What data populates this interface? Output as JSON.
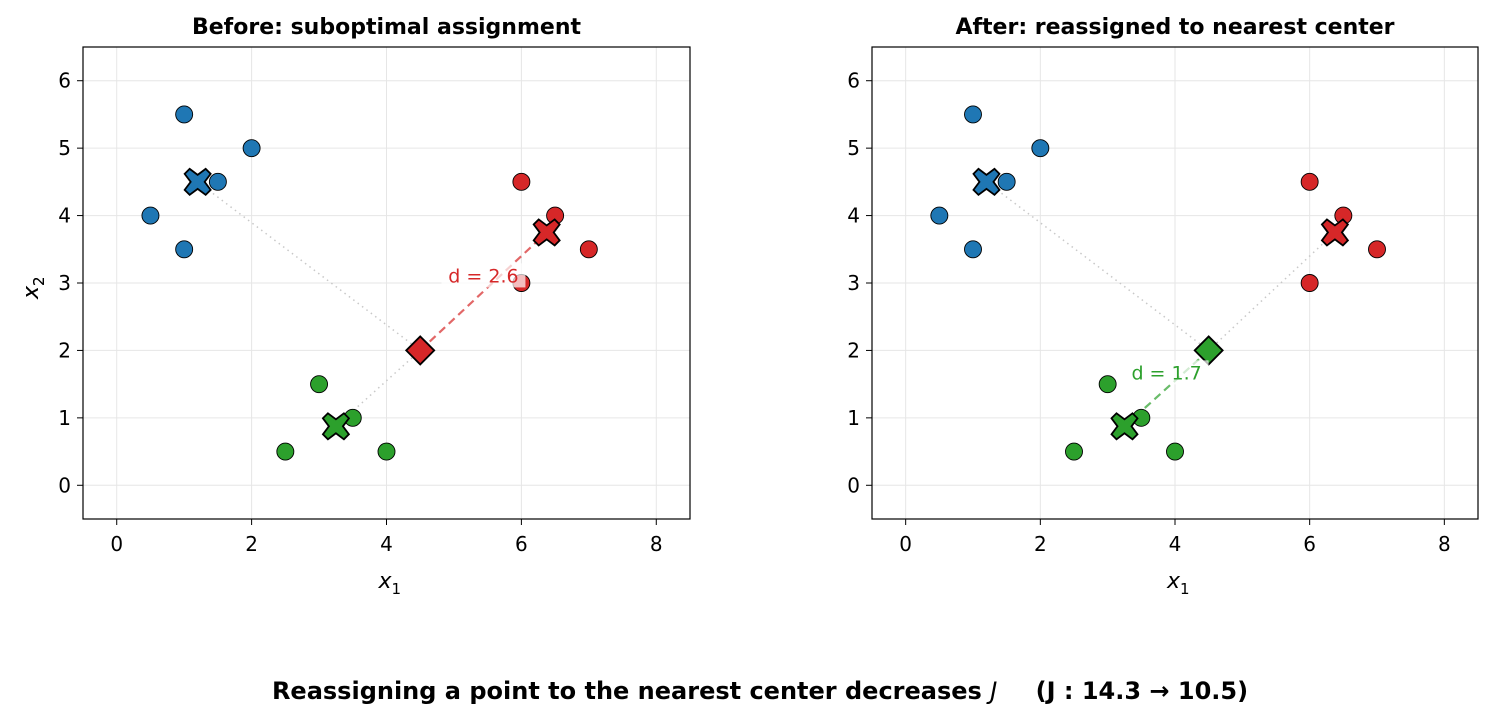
{
  "suptitle": {
    "text": "Reassigning a point to the nearest center decreases",
    "j_symbol": "J",
    "change": "(J : 14.3 → 10.5)"
  },
  "colors": {
    "blue": "#1f77b4",
    "red": "#d62728",
    "green": "#2ca02c",
    "grid": "#e6e6e6",
    "link": "#c8c8c8"
  },
  "chart_data": [
    {
      "type": "scatter",
      "title": "Before: suboptimal assignment",
      "xlabel": "x",
      "xlabel_sub": "1",
      "ylabel": "x",
      "ylabel_sub": "2",
      "xlim": [
        -0.5,
        8.5
      ],
      "ylim": [
        -0.5,
        6.5
      ],
      "xticks": [
        0,
        2,
        4,
        6,
        8
      ],
      "yticks": [
        0,
        1,
        2,
        3,
        4,
        5,
        6
      ],
      "grid": true,
      "series": [
        {
          "color": "blue",
          "points": [
            [
              1,
              5.5
            ],
            [
              2,
              5
            ],
            [
              1.5,
              4.5
            ],
            [
              0.5,
              4
            ],
            [
              1,
              3.5
            ]
          ],
          "center": [
            1.2,
            4.5
          ]
        },
        {
          "color": "red",
          "points": [
            [
              6,
              4.5
            ],
            [
              6.5,
              4
            ],
            [
              7,
              3.5
            ],
            [
              6,
              3
            ]
          ],
          "center": [
            6.375,
            3.75
          ]
        },
        {
          "color": "green",
          "points": [
            [
              3,
              1.5
            ],
            [
              3.5,
              1
            ],
            [
              2.5,
              0.5
            ],
            [
              4,
              0.5
            ]
          ],
          "center": [
            3.25,
            0.875
          ]
        }
      ],
      "highlight_point": {
        "x": 4.5,
        "y": 2,
        "assigned": "red",
        "distance_label": "d = 2.6"
      }
    },
    {
      "type": "scatter",
      "title": "After: reassigned to nearest center",
      "xlabel": "x",
      "xlabel_sub": "1",
      "ylabel": "x",
      "ylabel_sub": "2",
      "xlim": [
        -0.5,
        8.5
      ],
      "ylim": [
        -0.5,
        6.5
      ],
      "xticks": [
        0,
        2,
        4,
        6,
        8
      ],
      "yticks": [
        0,
        1,
        2,
        3,
        4,
        5,
        6
      ],
      "grid": true,
      "series": [
        {
          "color": "blue",
          "points": [
            [
              1,
              5.5
            ],
            [
              2,
              5
            ],
            [
              1.5,
              4.5
            ],
            [
              0.5,
              4
            ],
            [
              1,
              3.5
            ]
          ],
          "center": [
            1.2,
            4.5
          ]
        },
        {
          "color": "red",
          "points": [
            [
              6,
              4.5
            ],
            [
              6.5,
              4
            ],
            [
              7,
              3.5
            ],
            [
              6,
              3
            ]
          ],
          "center": [
            6.375,
            3.75
          ]
        },
        {
          "color": "green",
          "points": [
            [
              3,
              1.5
            ],
            [
              3.5,
              1
            ],
            [
              2.5,
              0.5
            ],
            [
              4,
              0.5
            ]
          ],
          "center": [
            3.25,
            0.875
          ]
        }
      ],
      "highlight_point": {
        "x": 4.5,
        "y": 2,
        "assigned": "green",
        "distance_label": "d = 1.7"
      }
    }
  ]
}
